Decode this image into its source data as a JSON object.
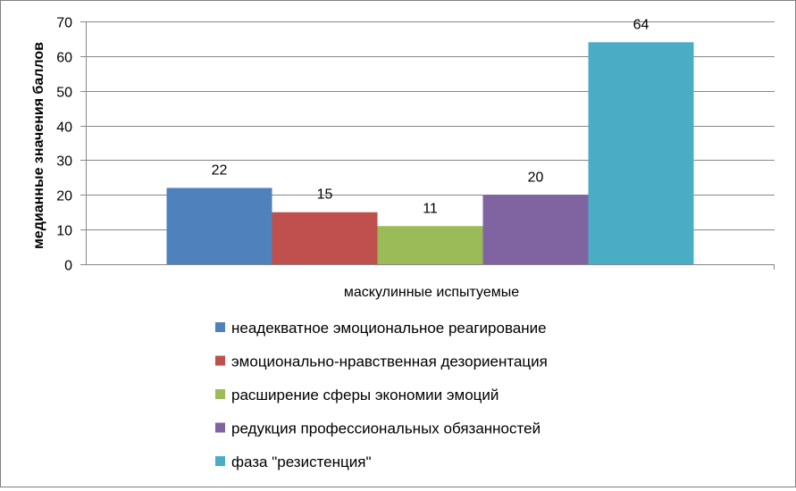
{
  "chart_data": {
    "type": "bar",
    "title": "",
    "xlabel": "",
    "ylabel": "медианные значения баллов",
    "categories": [
      "маскулинные испытуемые"
    ],
    "ylim": [
      0,
      70
    ],
    "yticks": [
      0,
      10,
      20,
      30,
      40,
      50,
      60,
      70
    ],
    "grid": true,
    "legend_position": "bottom",
    "series": [
      {
        "name": "неадекватное эмоциональное реагирование",
        "values": [
          22
        ],
        "color": "#4F81BD"
      },
      {
        "name": "эмоционально-нравственная дезориентация",
        "values": [
          15
        ],
        "color": "#C0504D"
      },
      {
        "name": "расширение сферы экономии эмоций",
        "values": [
          11
        ],
        "color": "#9BBB59"
      },
      {
        "name": "редукция профессиональных обязанностей",
        "values": [
          20
        ],
        "color": "#8064A2"
      },
      {
        "name": "фаза \"резистенция\"",
        "values": [
          64
        ],
        "color": "#4BACC6"
      }
    ]
  }
}
